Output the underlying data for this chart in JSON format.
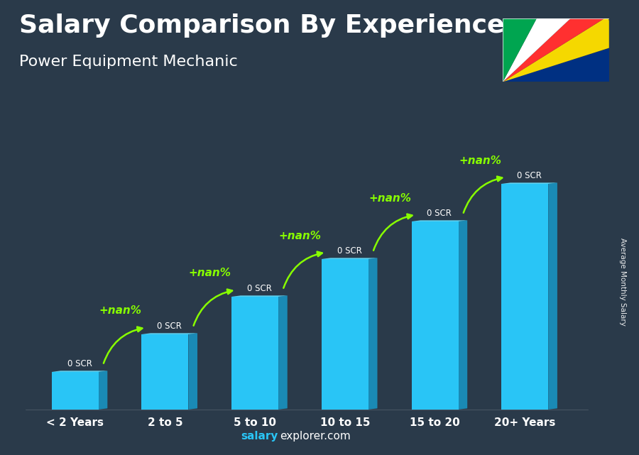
{
  "title": "Salary Comparison By Experience",
  "subtitle": "Power Equipment Mechanic",
  "categories": [
    "< 2 Years",
    "2 to 5",
    "5 to 10",
    "10 to 15",
    "15 to 20",
    "20+ Years"
  ],
  "values": [
    1,
    2,
    3,
    4,
    5,
    6
  ],
  "bar_color_face": "#29c5f6",
  "bar_color_right": "#1a8ab5",
  "bar_color_top": "#60d8f8",
  "bar_labels": [
    "0 SCR",
    "0 SCR",
    "0 SCR",
    "0 SCR",
    "0 SCR",
    "0 SCR"
  ],
  "increase_labels": [
    "+nan%",
    "+nan%",
    "+nan%",
    "+nan%",
    "+nan%"
  ],
  "ylabel": "Average Monthly Salary",
  "footer_bold": "salary",
  "footer_regular": "explorer.com",
  "background_color": "#2a3a4a",
  "title_color": "#ffffff",
  "subtitle_color": "#ffffff",
  "bar_label_color": "#ffffff",
  "increase_color": "#88ff00",
  "footer_color": "#29c5f6",
  "footer_regular_color": "#ffffff",
  "title_fontsize": 26,
  "subtitle_fontsize": 16,
  "flag_colors_order": [
    "#003082",
    "#f5d800",
    "#ff3030",
    "#ffffff",
    "#00a550"
  ],
  "ylim": [
    0,
    7.5
  ],
  "bar_width": 0.52,
  "bar_depth": 0.1,
  "xlim_left": -0.55,
  "xlim_right": 5.7
}
